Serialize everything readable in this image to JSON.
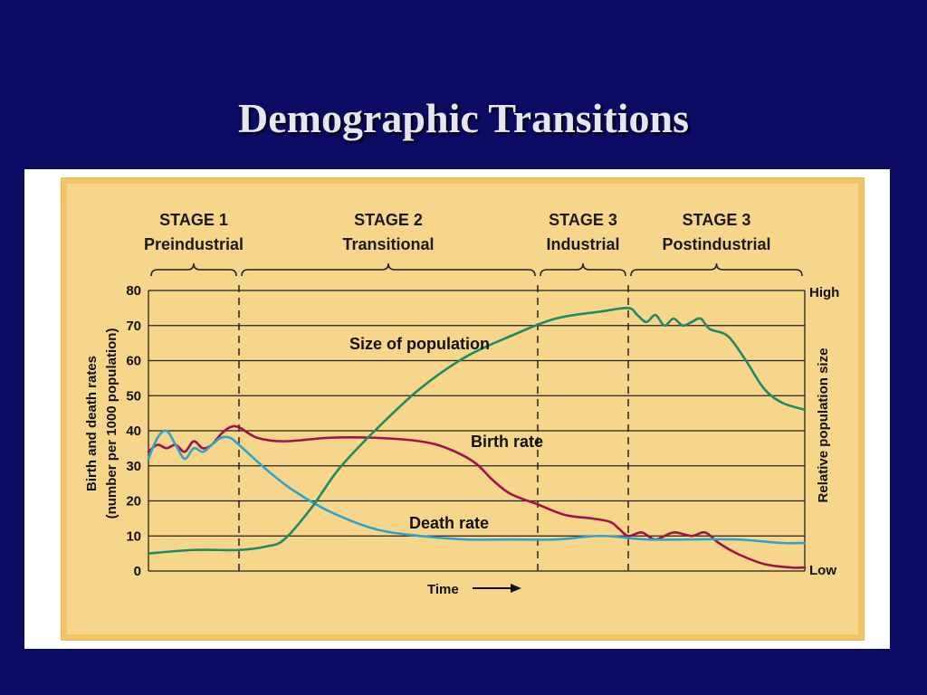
{
  "slide": {
    "title": "Demographic Transitions"
  },
  "chart_data": {
    "type": "line",
    "xlabel": "Time",
    "ylabel_line1": "Birth and death rates",
    "ylabel_line2": "(number per 1000 population)",
    "ylim": [
      0,
      80
    ],
    "yticks": [
      "0",
      "10",
      "20",
      "30",
      "40",
      "50",
      "60",
      "70",
      "80"
    ],
    "y2label": "Relative population size",
    "y2_high": "High",
    "y2_low": "Low",
    "grid": true,
    "stages": [
      {
        "num": "STAGE 1",
        "name": "Preindustrial",
        "start": 0,
        "end": 1
      },
      {
        "num": "STAGE 2",
        "name": "Transitional",
        "start": 1,
        "end": 4.3
      },
      {
        "num": "STAGE 3",
        "name": "Industrial",
        "start": 4.3,
        "end": 5.3
      },
      {
        "num": "STAGE 3",
        "name": "Postindustrial",
        "start": 5.3,
        "end": 7.25
      }
    ],
    "series": [
      {
        "name": "Birth rate",
        "color": "#a0124a",
        "x": [
          0,
          0.1,
          0.2,
          0.3,
          0.4,
          0.5,
          0.6,
          0.7,
          0.8,
          0.9,
          1.0,
          1.2,
          1.5,
          2.0,
          2.5,
          3.0,
          3.3,
          3.6,
          3.8,
          4.0,
          4.3,
          4.6,
          4.9,
          5.1,
          5.2,
          5.3,
          5.45,
          5.6,
          5.8,
          6.0,
          6.15,
          6.3,
          6.5,
          6.8,
          7.1,
          7.25
        ],
        "values": [
          34,
          36,
          35,
          36,
          34,
          37,
          35,
          36,
          39,
          41,
          41,
          38,
          37,
          38,
          38,
          37,
          35,
          31,
          26,
          22,
          19,
          16,
          15,
          14,
          12,
          10,
          11,
          9,
          11,
          10,
          11,
          8,
          5,
          2,
          1,
          1
        ]
      },
      {
        "name": "Death rate",
        "color": "#2ea3cc",
        "x": [
          0,
          0.1,
          0.2,
          0.3,
          0.4,
          0.5,
          0.6,
          0.7,
          0.8,
          0.9,
          1.0,
          1.3,
          1.6,
          2.0,
          2.5,
          3.0,
          3.5,
          4.0,
          4.5,
          5.0,
          5.5,
          6.0,
          6.5,
          7.0,
          7.25
        ],
        "values": [
          32,
          38,
          40,
          36,
          32,
          35,
          34,
          36,
          38,
          38,
          36,
          29,
          23,
          17,
          12,
          10,
          9,
          9,
          9,
          10,
          9,
          9,
          9,
          8,
          8
        ]
      },
      {
        "name": "Size of population",
        "color": "#1f8a63",
        "x": [
          0,
          0.5,
          1.0,
          1.3,
          1.5,
          1.8,
          2.1,
          2.5,
          3.0,
          3.5,
          4.0,
          4.5,
          5.0,
          5.3,
          5.4,
          5.5,
          5.6,
          5.7,
          5.8,
          5.9,
          6.0,
          6.1,
          6.2,
          6.4,
          6.6,
          6.8,
          7.0,
          7.25
        ],
        "values": [
          5,
          6,
          6,
          7,
          9,
          18,
          29,
          40,
          52,
          61,
          67,
          72,
          74,
          75,
          73,
          71,
          73,
          70,
          72,
          70,
          71,
          72,
          69,
          67,
          60,
          52,
          48,
          46
        ]
      }
    ],
    "labels": {
      "population": "Size of population",
      "birth": "Birth rate",
      "death": "Death rate"
    }
  }
}
